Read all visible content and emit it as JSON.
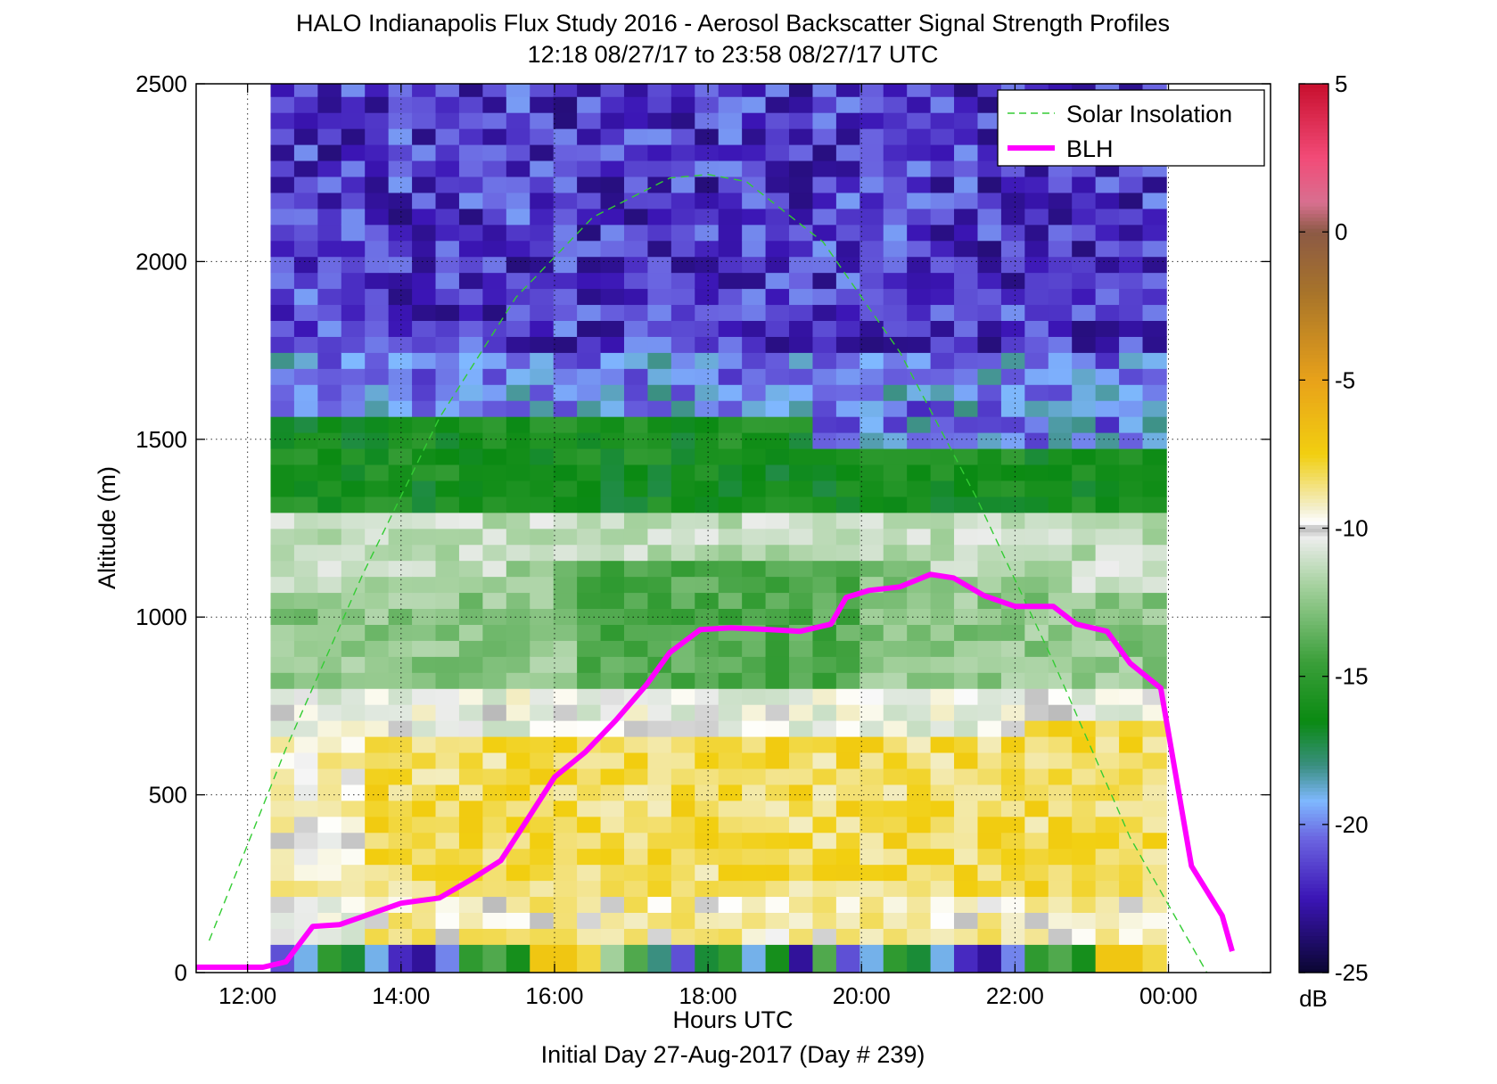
{
  "chart_data": {
    "type": "heatmap",
    "title_line1": "HALO Indianapolis Flux Study 2016 - Aerosol Backscatter Signal Strength Profiles",
    "title_line2": "12:18 08/27/17 to 23:58 08/27/17  UTC",
    "xlabel": "Hours UTC",
    "xlabel2": "Initial Day 27-Aug-2017 (Day # 239)",
    "ylabel": "Altitude (m)",
    "x_ticks": [
      {
        "hour": 12,
        "label": "12:00"
      },
      {
        "hour": 14,
        "label": "14:00"
      },
      {
        "hour": 16,
        "label": "16:00"
      },
      {
        "hour": 18,
        "label": "18:00"
      },
      {
        "hour": 20,
        "label": "20:00"
      },
      {
        "hour": 22,
        "label": "22:00"
      },
      {
        "hour": 24,
        "label": "00:00"
      }
    ],
    "xlim_hours": [
      11.33,
      25.33
    ],
    "y_ticks": [
      0,
      500,
      1000,
      1500,
      2000,
      2500
    ],
    "ylim": [
      0,
      2500
    ],
    "grid": true,
    "colorbar": {
      "label": "dB",
      "range": [
        -25,
        5
      ],
      "ticks": [
        5,
        0,
        -5,
        -10,
        -15,
        -20,
        -25
      ],
      "stops": [
        {
          "v": 5,
          "color": "#c8102e"
        },
        {
          "v": 2.5,
          "color": "#f24b78"
        },
        {
          "v": 1,
          "color": "#d87090"
        },
        {
          "v": 0,
          "color": "#8c5a45"
        },
        {
          "v": -2,
          "color": "#a7732a"
        },
        {
          "v": -5,
          "color": "#e8a21a"
        },
        {
          "v": -7.5,
          "color": "#f2cf10"
        },
        {
          "v": -9.3,
          "color": "#f3efcc"
        },
        {
          "v": -9.8,
          "color": "#ffffff"
        },
        {
          "v": -10.0,
          "color": "#b9b9b9"
        },
        {
          "v": -10.3,
          "color": "#ededed"
        },
        {
          "v": -12,
          "color": "#a2d09b"
        },
        {
          "v": -14.5,
          "color": "#3b9f3a"
        },
        {
          "v": -16.5,
          "color": "#0a8a12"
        },
        {
          "v": -18,
          "color": "#3a8f80"
        },
        {
          "v": -19.2,
          "color": "#7fb8ff"
        },
        {
          "v": -20.5,
          "color": "#6a63e0"
        },
        {
          "v": -22.5,
          "color": "#3b15b5"
        },
        {
          "v": -25,
          "color": "#0a0630"
        }
      ]
    },
    "heatmap": {
      "t_start_hours": 12.3,
      "t_end_hours": 23.97,
      "z_bottom_m": 80,
      "z_step_m": 45,
      "columns": 38,
      "rows": 54,
      "profile_summary": "0-80 m surface column; 80-650 m yellow aerosol layer (about -8 dB); 650-1550 m green/light boundary (about -12 to -16 dB); above 1550 m purple/blue (about -20 to -23 dB)"
    },
    "series": [
      {
        "name": "Solar Insolation",
        "style": "dashed",
        "color": "#33cc33",
        "x_hours": [
          11.5,
          12.5,
          13.5,
          14.5,
          15.5,
          16.5,
          17.5,
          18.0,
          18.5,
          19.5,
          20.5,
          21.5,
          22.5,
          23.5,
          24.5
        ],
        "y_m": [
          90,
          630,
          1120,
          1560,
          1900,
          2125,
          2235,
          2245,
          2225,
          2055,
          1745,
          1335,
          875,
          380,
          0
        ]
      },
      {
        "name": "BLH",
        "style": "solid",
        "color": "#ff00ff",
        "x_hours": [
          11.33,
          12.0,
          12.2,
          12.5,
          12.85,
          13.2,
          13.6,
          14.0,
          14.5,
          14.9,
          15.3,
          15.6,
          16.0,
          16.4,
          16.8,
          17.2,
          17.5,
          17.9,
          18.3,
          18.8,
          19.2,
          19.6,
          19.8,
          20.1,
          20.5,
          20.9,
          21.2,
          21.6,
          22.0,
          22.5,
          22.8,
          23.2,
          23.5,
          23.9,
          24.3,
          24.7,
          24.83
        ],
        "y_m": [
          15,
          15,
          15,
          30,
          130,
          135,
          165,
          195,
          210,
          260,
          315,
          415,
          550,
          620,
          710,
          810,
          900,
          965,
          970,
          965,
          960,
          980,
          1055,
          1075,
          1085,
          1120,
          1110,
          1060,
          1030,
          1030,
          980,
          960,
          870,
          800,
          300,
          160,
          60
        ]
      }
    ],
    "legend": {
      "placement": "top-right",
      "entries": [
        "Solar Insolation",
        "BLH"
      ]
    }
  }
}
